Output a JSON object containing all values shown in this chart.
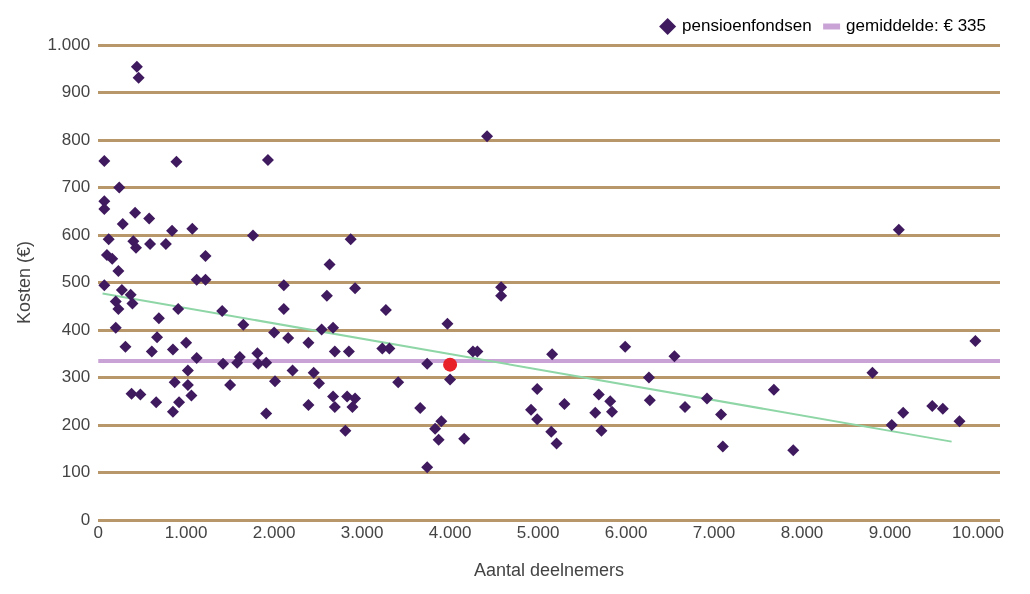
{
  "chart_data": {
    "type": "scatter",
    "xlabel": "Aantal deelnemers",
    "ylabel": "Kosten (€)",
    "xlim": [
      0,
      10250
    ],
    "ylim": [
      0,
      1000
    ],
    "xticks": [
      0,
      {
        "value": 1000,
        "label": "1.000"
      },
      {
        "value": 2000,
        "label": "2.000"
      },
      {
        "value": 3000,
        "label": "3.000"
      },
      {
        "value": 4000,
        "label": "4.000"
      },
      {
        "value": 5000,
        "label": "5.000"
      },
      {
        "value": 6000,
        "label": "6.000"
      },
      {
        "value": 7000,
        "label": "7.000"
      },
      {
        "value": 8000,
        "label": "8.000"
      },
      {
        "value": 9000,
        "label": "9.000"
      },
      {
        "value": 10000,
        "label": "10.000"
      }
    ],
    "yticks": [
      0,
      100,
      200,
      300,
      400,
      500,
      600,
      700,
      800,
      900,
      {
        "value": 1000,
        "label": "1.000"
      }
    ],
    "grid": "y",
    "legend": "top right",
    "marker": "diamond",
    "ref_lines": [
      {
        "axis": "y",
        "value": 335,
        "label": "gemiddelde: € 335",
        "color": "#c9a3d6"
      }
    ],
    "series": [
      {
        "name": "pensioenfondsen",
        "type": "scatter",
        "color": "#3f1a5e",
        "x": [
          440,
          460,
          70,
          890,
          1930,
          240,
          420,
          70,
          70,
          120,
          280,
          580,
          100,
          160,
          400,
          590,
          770,
          840,
          430,
          1070,
          1220,
          1760,
          2870,
          2630,
          230,
          70,
          270,
          370,
          390,
          200,
          230,
          200,
          310,
          690,
          910,
          1120,
          1220,
          1410,
          1650,
          2110,
          2110,
          2000,
          2160,
          2390,
          2540,
          2670,
          2600,
          2920,
          670,
          610,
          850,
          1000,
          1120,
          1420,
          1580,
          1610,
          1810,
          1820,
          1910,
          2210,
          2450,
          1020,
          870,
          1020,
          1060,
          1500,
          2010,
          380,
          480,
          660,
          920,
          850,
          1910,
          2390,
          2690,
          2850,
          3230,
          3310,
          3270,
          3970,
          3740,
          4260,
          4310,
          5160,
          5990,
          6260,
          6270,
          4000,
          3410,
          2510,
          2670,
          2830,
          2920,
          2690,
          2890,
          2810,
          3660,
          3900,
          3830,
          3870,
          4160,
          3740,
          4990,
          4920,
          4990,
          5300,
          5690,
          5820,
          5650,
          5840,
          5720,
          5150,
          5210,
          4420,
          4580,
          4580,
          9100,
          9970,
          6550,
          6670,
          6920,
          7080,
          7100,
          7680,
          7900,
          8800,
          9020,
          9150,
          9480,
          9600,
          9790
        ],
        "values": [
          954,
          931,
          756,
          754,
          758,
          700,
          647,
          671,
          655,
          591,
          623,
          635,
          558,
          550,
          587,
          581,
          581,
          609,
          573,
          613,
          556,
          599,
          591,
          538,
          524,
          494,
          484,
          474,
          456,
          460,
          444,
          405,
          365,
          425,
          444,
          506,
          506,
          440,
          411,
          494,
          444,
          395,
          383,
          373,
          401,
          405,
          472,
          488,
          385,
          355,
          359,
          373,
          341,
          329,
          331,
          343,
          351,
          329,
          331,
          315,
          310,
          315,
          290,
          284,
          262,
          284,
          292,
          266,
          264,
          248,
          248,
          228,
          224,
          242,
          355,
          355,
          361,
          361,
          442,
          413,
          329,
          355,
          355,
          349,
          365,
          300,
          252,
          296,
          290,
          288,
          260,
          260,
          256,
          238,
          238,
          188,
          236,
          208,
          192,
          169,
          171,
          111,
          276,
          232,
          212,
          244,
          264,
          250,
          226,
          228,
          188,
          186,
          161,
          808,
          490,
          472,
          611,
          377,
          345,
          238,
          256,
          222,
          155,
          274,
          147,
          310,
          200,
          226,
          240,
          234,
          208
        ]
      },
      {
        "type": "scatter",
        "color": "#e8202a",
        "marker": "circle",
        "x": [
          4000
        ],
        "values": [
          327
        ]
      },
      {
        "type": "line",
        "color": "#8ed6a6",
        "marker": "none",
        "x": [
          50,
          9700
        ],
        "values": [
          477,
          165
        ]
      }
    ]
  }
}
